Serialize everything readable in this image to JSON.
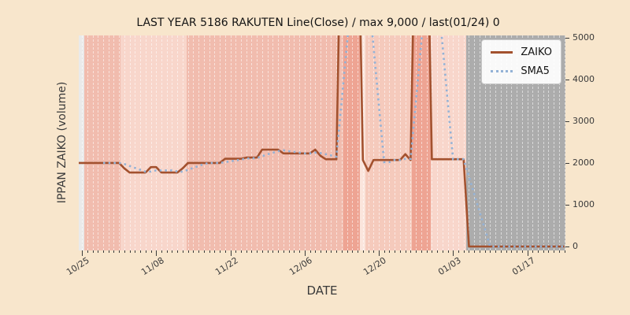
{
  "chart_data": {
    "type": "line",
    "title": "LAST YEAR 5186 RAKUTEN Line(Close) / max 9,000 / last(01/24) 0",
    "xlabel": "DATE",
    "ylabel": "IPPAN ZAIKO (volume)",
    "legend_position": "upper right",
    "grid": "vertical daily dashed white lines",
    "y_axis_side": "right",
    "ylim": [
      -95,
      5055
    ],
    "xlim_days": [
      -0.6,
      91.2
    ],
    "y_ticks": [
      0,
      1000,
      2000,
      3000,
      4000,
      5000
    ],
    "x_tick_labels": [
      "10/25",
      "11/08",
      "11/22",
      "12/06",
      "12/20",
      "01/03",
      "01/17"
    ],
    "x_tick_days": [
      0,
      14,
      28,
      42,
      56,
      70,
      84
    ],
    "dates": [
      "10/25",
      "10/26",
      "10/27",
      "10/28",
      "10/29",
      "10/30",
      "10/31",
      "11/01",
      "11/02",
      "11/03",
      "11/04",
      "11/05",
      "11/06",
      "11/07",
      "11/08",
      "11/09",
      "11/10",
      "11/11",
      "11/12",
      "11/13",
      "11/14",
      "11/15",
      "11/16",
      "11/17",
      "11/18",
      "11/19",
      "11/20",
      "11/21",
      "11/22",
      "11/23",
      "11/24",
      "11/25",
      "11/26",
      "11/27",
      "11/28",
      "11/29",
      "11/30",
      "12/01",
      "12/02",
      "12/03",
      "12/04",
      "12/05",
      "12/06",
      "12/07",
      "12/08",
      "12/09",
      "12/10",
      "12/11",
      "12/12",
      "12/13",
      "12/14",
      "12/15",
      "12/16",
      "12/17",
      "12/18",
      "12/19",
      "12/20",
      "12/21",
      "12/22",
      "12/23",
      "12/24",
      "12/25",
      "12/26",
      "12/27",
      "12/28",
      "12/29",
      "12/30",
      "12/31",
      "01/01",
      "01/02",
      "01/03",
      "01/04",
      "01/05",
      "01/06",
      "01/07",
      "01/08",
      "01/09",
      "01/10",
      "01/11",
      "01/12",
      "01/13",
      "01/14",
      "01/15",
      "01/16",
      "01/17",
      "01/18",
      "01/19",
      "01/20",
      "01/21",
      "01/22",
      "01/23",
      "01/24"
    ],
    "series": [
      {
        "name": "ZAIKO",
        "style": "solid",
        "color": "#a3512e",
        "max": 9000,
        "last": 0,
        "values": [
          2000,
          2000,
          2000,
          2000,
          2000,
          2000,
          2000,
          2000,
          1870,
          1770,
          1770,
          1770,
          1770,
          1900,
          1900,
          1770,
          1770,
          1770,
          1770,
          1870,
          2000,
          2000,
          2000,
          2000,
          2000,
          2000,
          2000,
          2100,
          2100,
          2100,
          2100,
          2130,
          2130,
          2130,
          2320,
          2320,
          2320,
          2320,
          2230,
          2230,
          2230,
          2230,
          2230,
          2230,
          2320,
          2170,
          2090,
          2090,
          2090,
          9000,
          9000,
          9000,
          9000,
          2070,
          1810,
          2070,
          2070,
          2070,
          2070,
          2070,
          2070,
          2210,
          2070,
          9000,
          9000,
          9000,
          2090,
          2090,
          2090,
          2090,
          2090,
          2090,
          2090,
          0,
          0,
          0,
          0,
          0,
          0,
          0,
          0,
          0,
          0,
          0,
          0,
          0,
          0,
          0,
          0,
          0,
          0,
          0
        ]
      },
      {
        "name": "SMA5",
        "style": "dotted",
        "color": "#93b2d6",
        "window": 5,
        "derived_from": "ZAIKO"
      }
    ],
    "background_bands": [
      {
        "start_day": 0.45,
        "end_day": 7.3,
        "color": "#f1bcae"
      },
      {
        "start_day": 7.3,
        "end_day": 19.7,
        "color": "#f8d6cb"
      },
      {
        "start_day": 19.7,
        "end_day": 49.3,
        "color": "#f1bcae"
      },
      {
        "start_day": 49.3,
        "end_day": 52.4,
        "color": "#eea493"
      },
      {
        "start_day": 52.4,
        "end_day": 53.4,
        "color": "#fbe5dc"
      },
      {
        "start_day": 53.4,
        "end_day": 62.2,
        "color": "#f5cabc"
      },
      {
        "start_day": 62.2,
        "end_day": 65.8,
        "color": "#eea493"
      },
      {
        "start_day": 65.8,
        "end_day": 72.5,
        "color": "#f8d6cb"
      },
      {
        "start_day": 72.5,
        "end_day": 91.2,
        "color": "#acacac"
      }
    ],
    "colors": {
      "figure_background": "#f8e6cc",
      "plot_base": "#eaeaea",
      "gridline": "rgba(255,255,255,0.55)",
      "tick": "#3a3a3a"
    }
  }
}
